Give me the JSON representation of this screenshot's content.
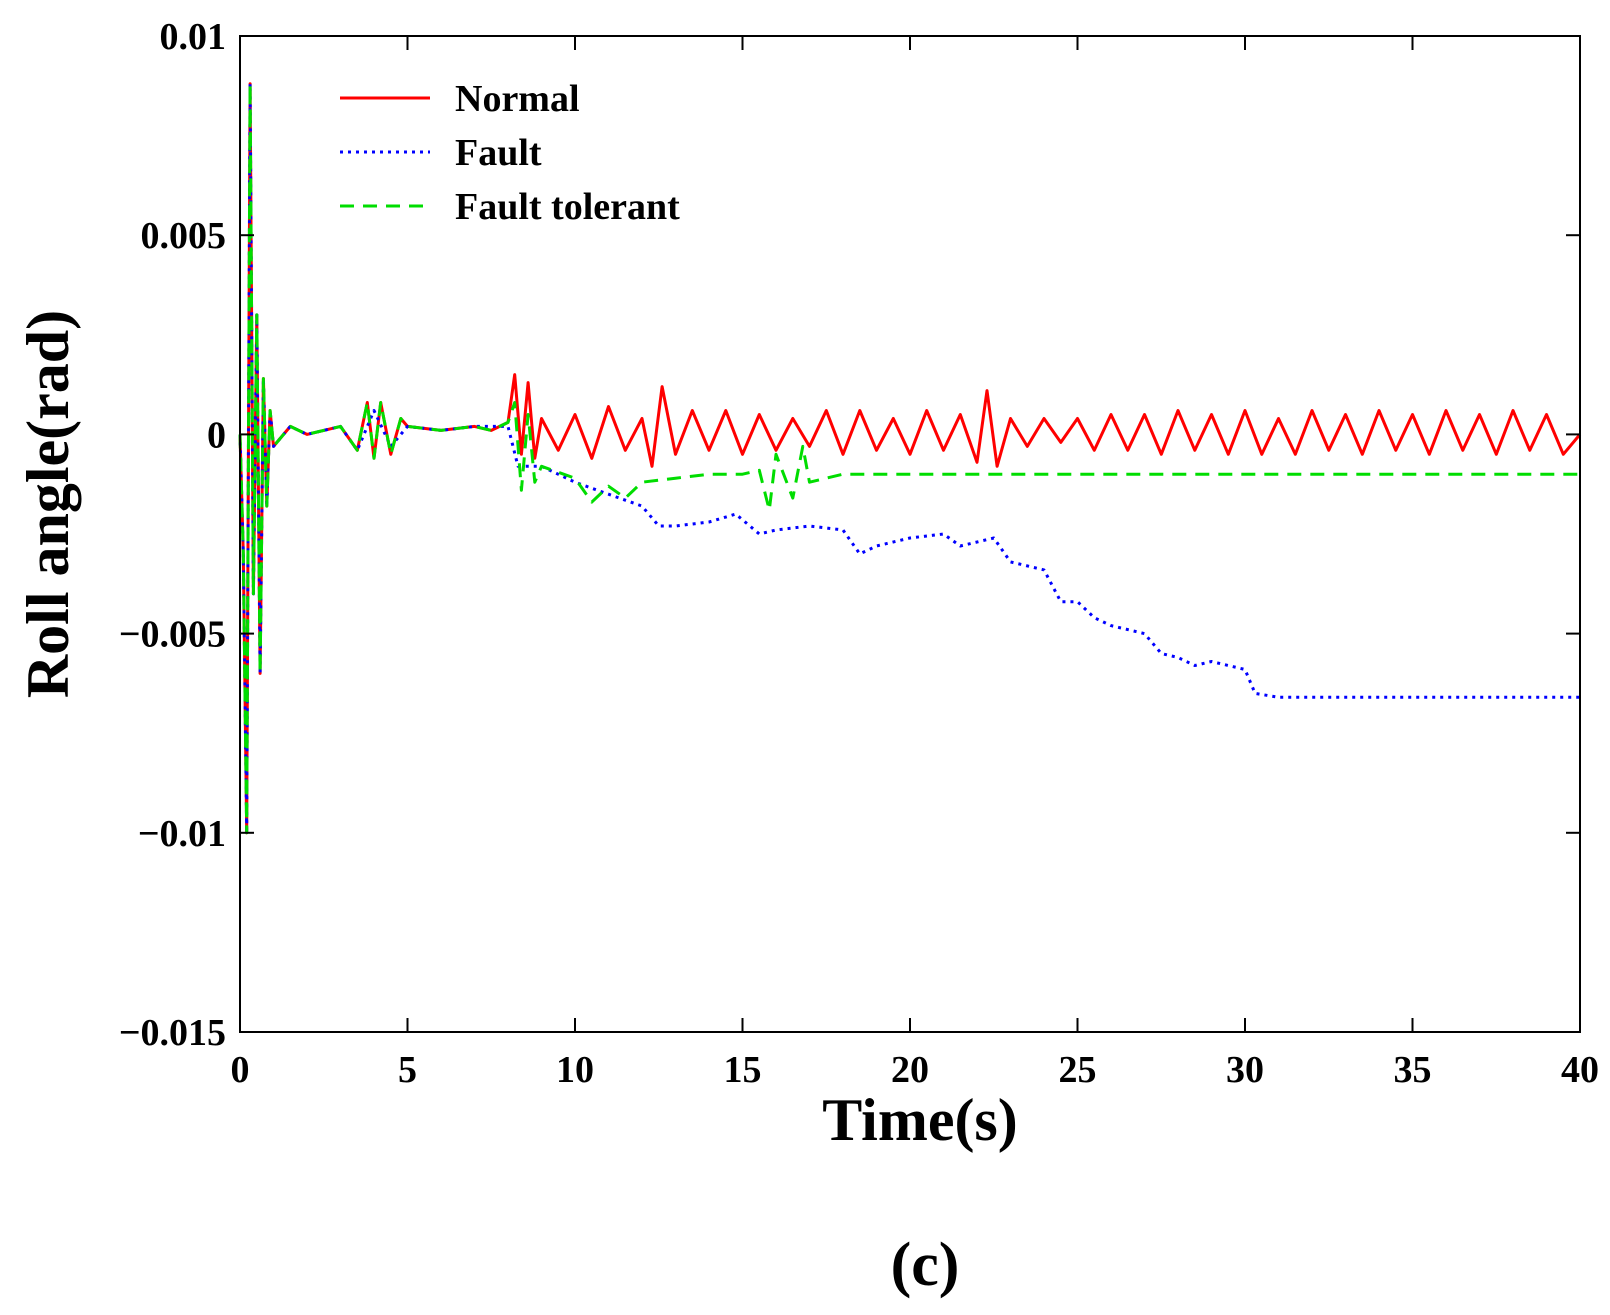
{
  "chart_data": {
    "type": "line",
    "title": "",
    "caption": "(c)",
    "xlabel": "Time(s)",
    "ylabel": "Roll angle(rad)",
    "xlim": [
      0,
      40
    ],
    "ylim": [
      -0.015,
      0.01
    ],
    "xticks": [
      0,
      5,
      10,
      15,
      20,
      25,
      30,
      35,
      40
    ],
    "xtick_labels": [
      "0",
      "5",
      "10",
      "15",
      "20",
      "25",
      "30",
      "35",
      "40"
    ],
    "yticks": [
      0.01,
      0.005,
      0,
      -0.005,
      -0.01,
      -0.015
    ],
    "ytick_labels": [
      "0.01",
      "0.005",
      "0",
      "−0.005",
      "−0.01",
      "−0.015"
    ],
    "grid": false,
    "legend_position": "top-left",
    "series": [
      {
        "name": "Normal",
        "color": "#ff0000",
        "style": "solid",
        "x": [
          0,
          0.1,
          0.2,
          0.3,
          0.4,
          0.5,
          0.6,
          0.7,
          0.8,
          0.9,
          1.0,
          1.5,
          2.0,
          3.0,
          3.5,
          3.8,
          4.0,
          4.2,
          4.5,
          4.8,
          5.0,
          6.0,
          7.0,
          7.5,
          8.0,
          8.2,
          8.4,
          8.6,
          8.8,
          9.0,
          9.5,
          10,
          10.5,
          11,
          11.5,
          12,
          12.3,
          12.6,
          13,
          13.5,
          14,
          14.5,
          15,
          15.5,
          16,
          16.5,
          17,
          17.5,
          18,
          18.5,
          19,
          19.5,
          20,
          20.5,
          21,
          21.5,
          22,
          22.3,
          22.6,
          23,
          23.5,
          24,
          24.5,
          25,
          25.5,
          26,
          26.5,
          27,
          27.5,
          28,
          28.5,
          29,
          29.5,
          30,
          30.5,
          31,
          31.5,
          32,
          32.5,
          33,
          33.5,
          34,
          34.5,
          35,
          35.5,
          36,
          36.5,
          37,
          37.5,
          38,
          38.5,
          39,
          39.5,
          40
        ],
        "y": [
          0,
          -0.003,
          -0.01,
          0.0088,
          -0.004,
          0.003,
          -0.006,
          0.0014,
          -0.0018,
          0.0006,
          -0.0003,
          0.0002,
          0,
          0.0002,
          -0.0004,
          0.0008,
          -0.0006,
          0.0008,
          -0.0005,
          0.0004,
          0.0002,
          0.0001,
          0.0002,
          0.0001,
          0.0003,
          0.0015,
          -0.0005,
          0.0013,
          -0.0006,
          0.0004,
          -0.0004,
          0.0005,
          -0.0006,
          0.0007,
          -0.0004,
          0.0004,
          -0.0008,
          0.0012,
          -0.0005,
          0.0006,
          -0.0004,
          0.0006,
          -0.0005,
          0.0005,
          -0.0004,
          0.0004,
          -0.0003,
          0.0006,
          -0.0005,
          0.0006,
          -0.0004,
          0.0004,
          -0.0005,
          0.0006,
          -0.0004,
          0.0005,
          -0.0007,
          0.0011,
          -0.0008,
          0.0004,
          -0.0003,
          0.0004,
          -0.0002,
          0.0004,
          -0.0004,
          0.0005,
          -0.0004,
          0.0005,
          -0.0005,
          0.0006,
          -0.0004,
          0.0005,
          -0.0005,
          0.0006,
          -0.0005,
          0.0004,
          -0.0005,
          0.0006,
          -0.0004,
          0.0005,
          -0.0005,
          0.0006,
          -0.0004,
          0.0005,
          -0.0005,
          0.0006,
          -0.0004,
          0.0005,
          -0.0005,
          0.0006,
          -0.0004,
          0.0005,
          -0.0005,
          0
        ]
      },
      {
        "name": "Fault",
        "color": "#0000ff",
        "style": "dotted",
        "x": [
          0,
          0.1,
          0.2,
          0.3,
          0.4,
          0.5,
          0.6,
          0.7,
          0.8,
          0.9,
          1.0,
          1.5,
          2.0,
          3.0,
          3.5,
          4.0,
          4.5,
          5.0,
          6.0,
          7.0,
          8.0,
          8.3,
          9.0,
          10.0,
          11.0,
          12.0,
          12.5,
          13.0,
          14.0,
          14.8,
          15.5,
          16.0,
          17.0,
          18.0,
          18.5,
          19.0,
          20.0,
          21.0,
          21.5,
          22.5,
          23.0,
          24.0,
          24.5,
          25.0,
          25.5,
          26.0,
          27.0,
          27.5,
          28.0,
          28.5,
          29.0,
          30.0,
          30.3,
          31.0,
          32.0,
          36.0,
          40.0
        ],
        "y": [
          0,
          -0.003,
          -0.01,
          0.0088,
          -0.004,
          0.003,
          -0.006,
          0.0014,
          -0.0018,
          0.0006,
          -0.0003,
          0.0002,
          0,
          0.0002,
          -0.0004,
          0.0006,
          -0.0003,
          0.0002,
          0.0001,
          0.0002,
          0.0002,
          -0.0008,
          -0.0008,
          -0.0012,
          -0.0015,
          -0.0018,
          -0.0023,
          -0.0023,
          -0.0022,
          -0.002,
          -0.0025,
          -0.0024,
          -0.0023,
          -0.0024,
          -0.003,
          -0.0028,
          -0.0026,
          -0.0025,
          -0.0028,
          -0.0026,
          -0.0032,
          -0.0034,
          -0.0042,
          -0.0042,
          -0.0046,
          -0.0048,
          -0.005,
          -0.0055,
          -0.0056,
          -0.0058,
          -0.0057,
          -0.0059,
          -0.0065,
          -0.0066,
          -0.0066,
          -0.0066,
          -0.0066
        ]
      },
      {
        "name": "Fault tolerant",
        "color": "#00dd00",
        "style": "dashed",
        "x": [
          0,
          0.1,
          0.2,
          0.3,
          0.4,
          0.5,
          0.6,
          0.7,
          0.8,
          0.9,
          1.0,
          1.5,
          2.0,
          3.0,
          3.5,
          3.8,
          4.0,
          4.2,
          4.5,
          4.8,
          5.0,
          6.0,
          7.0,
          7.5,
          8.0,
          8.2,
          8.4,
          8.6,
          8.8,
          9.0,
          10.0,
          10.5,
          11.0,
          11.5,
          12.0,
          13.0,
          14.0,
          15.0,
          15.5,
          15.8,
          16.0,
          16.5,
          16.8,
          17.0,
          18.0,
          20.0,
          25.0,
          30.0,
          35.0,
          40.0
        ],
        "y": [
          0,
          -0.003,
          -0.01,
          0.0088,
          -0.004,
          0.003,
          -0.006,
          0.0014,
          -0.0018,
          0.0006,
          -0.0003,
          0.0002,
          0,
          0.0002,
          -0.0004,
          0.0008,
          -0.0006,
          0.0008,
          -0.0005,
          0.0004,
          0.0002,
          0.0001,
          0.0002,
          0.0001,
          0.0003,
          0.0008,
          -0.0014,
          0.0005,
          -0.0012,
          -0.0008,
          -0.0011,
          -0.0017,
          -0.0013,
          -0.0016,
          -0.0012,
          -0.0011,
          -0.001,
          -0.001,
          -0.0009,
          -0.0019,
          -0.0005,
          -0.0016,
          -0.0003,
          -0.0012,
          -0.001,
          -0.001,
          -0.001,
          -0.001,
          -0.001,
          -0.001
        ]
      }
    ]
  }
}
